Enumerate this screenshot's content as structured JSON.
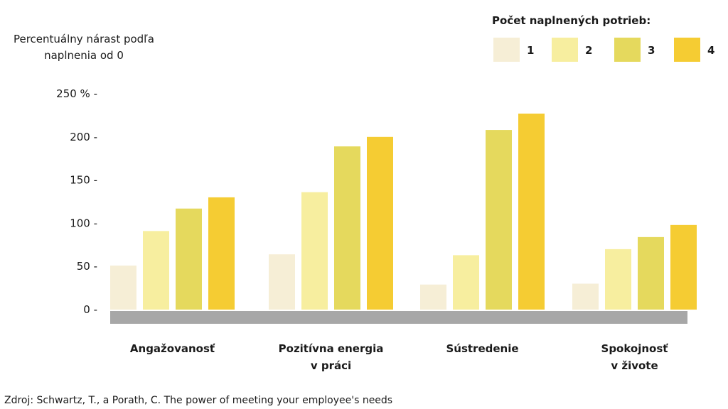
{
  "chart_data": {
    "type": "bar",
    "ylabel": "Percentuálny nárast podľa naplnenia od 0",
    "y_ticks": [
      "0 -",
      "50 -",
      "100 -",
      "150 -",
      "200 -",
      "250 % -"
    ],
    "ylim": [
      0,
      250
    ],
    "legend_title": "Počet naplnených potrieb:",
    "legend_placement": "top-right",
    "grid": false,
    "categories": [
      [
        "Angažovanosť"
      ],
      [
        "Pozitívna energia",
        "v práci"
      ],
      [
        "Sústredenie"
      ],
      [
        "Spokojnosť",
        "v živote"
      ]
    ],
    "series": [
      {
        "name": "1",
        "color": "#f6eed6",
        "values": [
          51,
          64,
          29,
          30
        ]
      },
      {
        "name": "2",
        "color": "#f7ee9f",
        "values": [
          91,
          136,
          63,
          70
        ]
      },
      {
        "name": "3",
        "color": "#e5d95d",
        "values": [
          117,
          189,
          208,
          84
        ]
      },
      {
        "name": "4",
        "color": "#f5cc33",
        "values": [
          130,
          200,
          227,
          98
        ]
      }
    ],
    "baseline_color": "#a7a7a7"
  },
  "source": "Zdroj: Schwartz, T., a Porath, C. The power of meeting your employee's needs"
}
